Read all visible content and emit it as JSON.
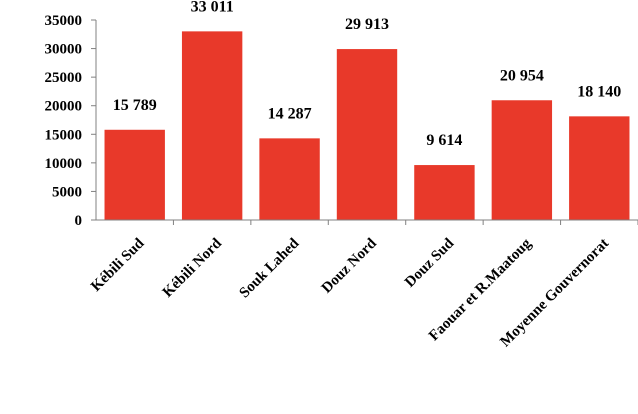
{
  "chart_data": {
    "type": "bar",
    "categories": [
      "Kébili Sud",
      "Kébili Nord",
      "Souk Lahed",
      "Douz Nord",
      "Douz Sud",
      "Faouar et R.Maatoug",
      "Moyenne Gouvernorat"
    ],
    "values": [
      15789,
      33011,
      14287,
      29913,
      9614,
      20954,
      18140
    ],
    "data_labels": [
      "15 789",
      "33 011",
      "14 287",
      "29 913",
      "9 614",
      "20 954",
      "18 140"
    ],
    "y_ticks": [
      "0",
      "5000",
      "10000",
      "15000",
      "20000",
      "25000",
      "30000",
      "35000"
    ],
    "ylim": [
      0,
      35000
    ],
    "grid": false,
    "legend": "none",
    "bar_color": "#e8392a"
  }
}
